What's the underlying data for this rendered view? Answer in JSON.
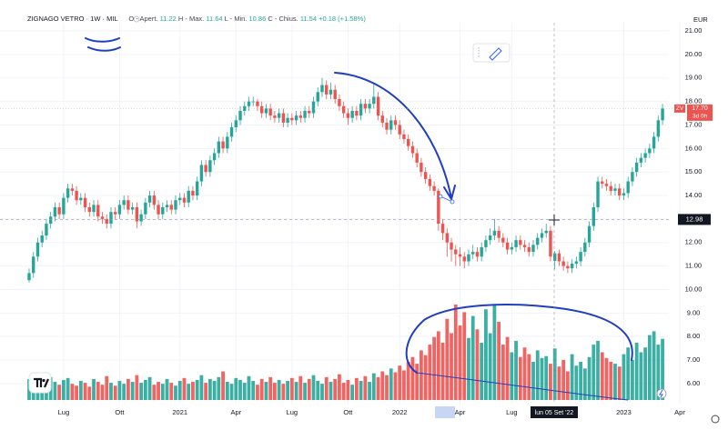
{
  "chart_data": {
    "type": "candlestick",
    "header": {
      "symbol": "ZIGNAGO VETRO · 1W · MIL",
      "o_label": "O - Apert.",
      "h_label": "H - Max.",
      "l_label": "L - Min.",
      "c_label": "C - Chius.",
      "change": "+0.18 (+1.58%)"
    },
    "currency": "EUR",
    "symbol_badge": "ZV",
    "last_price": {
      "value": 17.7,
      "label": "17.70"
    },
    "countdown": "3d 0h",
    "crosshair": {
      "price": 12.98,
      "date": "lun 05 Set '22"
    },
    "up_color": "#26a69a",
    "down_color": "#ef5350",
    "grid": true,
    "ylim": [
      5.3,
      21.35
    ],
    "yticks": [
      {
        "value": 6,
        "label": "6.00"
      },
      {
        "value": 7,
        "label": "7.00"
      },
      {
        "value": 8,
        "label": "8.00"
      },
      {
        "value": 9,
        "label": "9.00"
      },
      {
        "value": 10,
        "label": "10.00"
      },
      {
        "value": 11,
        "label": "11.00"
      },
      {
        "value": 12,
        "label": "12.00"
      },
      {
        "value": 13,
        "label": "13.00"
      },
      {
        "value": 14,
        "label": "14.00"
      },
      {
        "value": 15,
        "label": "15.00"
      },
      {
        "value": 16,
        "label": "16.00"
      },
      {
        "value": 17,
        "label": "17.00"
      },
      {
        "value": 18,
        "label": "18.00"
      },
      {
        "value": 19,
        "label": "19.00"
      },
      {
        "value": 20,
        "label": "20.00"
      },
      {
        "value": 21,
        "label": "21.00"
      }
    ],
    "vlim": [
      0,
      100
    ],
    "categories": [
      null,
      null,
      null,
      null,
      null,
      null,
      null,
      null,
      "Lug",
      null,
      null,
      null,
      null,
      null,
      null,
      null,
      null,
      null,
      null,
      null,
      null,
      "Ott",
      null,
      null,
      null,
      null,
      null,
      null,
      null,
      null,
      null,
      null,
      null,
      null,
      null,
      "2021",
      null,
      null,
      null,
      null,
      null,
      null,
      null,
      null,
      null,
      null,
      null,
      null,
      "Apr",
      null,
      null,
      null,
      null,
      null,
      null,
      null,
      null,
      null,
      null,
      null,
      null,
      "Lug",
      null,
      null,
      null,
      null,
      null,
      null,
      null,
      null,
      null,
      null,
      null,
      null,
      "Ott",
      null,
      null,
      null,
      null,
      null,
      null,
      null,
      null,
      null,
      null,
      null,
      "2022",
      null,
      null,
      null,
      null,
      null,
      null,
      null,
      null,
      null,
      null,
      null,
      null,
      null,
      "Apr",
      null,
      null,
      null,
      null,
      null,
      null,
      null,
      null,
      null,
      null,
      null,
      "Lug",
      null,
      null,
      null,
      null,
      null,
      null,
      null,
      null,
      null,
      null,
      null,
      null,
      null,
      null,
      null,
      null,
      null,
      null,
      null,
      null,
      null,
      null,
      null,
      null,
      null,
      "2023",
      null,
      null,
      null,
      null,
      null,
      null,
      null,
      null,
      null,
      null,
      null,
      null,
      "Apr"
    ],
    "open": [
      10.4,
      10.7,
      11.4,
      12.0,
      12.3,
      12.8,
      13.1,
      13.5,
      13.2,
      13.9,
      14.3,
      14.2,
      13.8,
      13.9,
      13.5,
      13.3,
      13.6,
      13.1,
      13.0,
      12.8,
      13.3,
      13.2,
      13.6,
      13.8,
      13.4,
      13.5,
      12.9,
      13.2,
      13.7,
      14.0,
      13.6,
      13.2,
      13.5,
      13.6,
      13.4,
      13.8,
      13.9,
      13.7,
      14.2,
      14.0,
      14.6,
      15.3,
      15.0,
      15.5,
      15.8,
      16.3,
      16.0,
      16.5,
      16.9,
      17.2,
      17.6,
      17.8,
      18.0,
      18.0,
      17.8,
      17.5,
      17.7,
      17.4,
      17.3,
      17.5,
      17.1,
      17.3,
      17.2,
      17.4,
      17.3,
      17.6,
      17.5,
      18.0,
      18.4,
      18.7,
      18.3,
      18.5,
      18.1,
      17.8,
      17.5,
      17.3,
      17.6,
      17.4,
      17.9,
      17.7,
      17.9,
      18.2,
      17.4,
      17.1,
      16.8,
      17.2,
      17.0,
      16.6,
      16.4,
      16.1,
      15.8,
      15.4,
      15.0,
      14.7,
      14.4,
      14.2,
      12.8,
      12.4,
      12.0,
      11.7,
      11.5,
      11.4,
      11.2,
      11.5,
      11.6,
      11.4,
      11.8,
      12.1,
      12.3,
      12.5,
      12.2,
      12.0,
      11.7,
      11.8,
      12.1,
      11.9,
      11.8,
      11.6,
      11.9,
      12.2,
      12.4,
      12.5,
      11.22,
      11.54,
      11.2,
      11.0,
      10.9,
      11.1,
      11.2,
      11.6,
      12.0,
      12.7,
      13.5,
      14.6,
      14.5,
      14.4,
      14.2,
      14.3,
      14.0,
      14.1,
      14.6,
      15.0,
      15.4,
      15.6,
      15.8,
      16.0,
      16.5,
      17.2,
      null,
      null,
      null,
      null
    ],
    "high": [
      10.9,
      11.6,
      12.2,
      12.5,
      13.0,
      13.3,
      13.7,
      13.7,
      14.1,
      14.5,
      14.5,
      14.4,
      14.1,
      14.1,
      13.7,
      13.8,
      13.8,
      13.3,
      13.2,
      13.5,
      13.5,
      13.8,
      14.0,
      14.0,
      13.7,
      13.7,
      13.4,
      13.9,
      14.2,
      14.2,
      13.8,
      13.7,
      13.8,
      13.8,
      14.0,
      14.1,
      14.1,
      14.4,
      14.4,
      14.8,
      15.5,
      15.5,
      15.7,
      16.0,
      16.5,
      16.5,
      16.7,
      17.1,
      17.4,
      17.8,
      18.0,
      18.2,
      18.2,
      18.1,
      18.0,
      17.9,
      17.9,
      17.6,
      17.7,
      17.7,
      17.5,
      17.5,
      17.6,
      17.6,
      17.8,
      17.8,
      18.2,
      18.6,
      19.0,
      18.9,
      18.8,
      18.7,
      18.3,
      18.0,
      17.7,
      17.8,
      17.8,
      18.1,
      18.1,
      18.1,
      18.8,
      18.4,
      17.6,
      17.3,
      17.4,
      17.4,
      17.2,
      16.8,
      16.6,
      16.3,
      16.0,
      15.6,
      15.2,
      14.9,
      14.6,
      14.3,
      13.0,
      12.6,
      12.2,
      11.9,
      11.8,
      11.6,
      11.7,
      11.9,
      11.8,
      12.0,
      12.3,
      12.6,
      13.0,
      12.7,
      12.4,
      12.2,
      12.0,
      12.3,
      12.3,
      12.1,
      12.0,
      12.1,
      12.4,
      12.6,
      12.8,
      12.7,
      11.64,
      11.7,
      11.4,
      11.2,
      11.3,
      11.4,
      11.8,
      12.2,
      12.9,
      13.7,
      14.8,
      14.8,
      14.7,
      14.6,
      14.5,
      14.5,
      14.3,
      14.8,
      15.2,
      15.6,
      15.8,
      16.0,
      16.2,
      16.7,
      17.4,
      17.9,
      null,
      null,
      null,
      null
    ],
    "low": [
      10.3,
      10.5,
      11.2,
      11.8,
      12.1,
      12.6,
      12.9,
      13.0,
      13.0,
      13.7,
      14.0,
      13.6,
      13.6,
      13.3,
      13.1,
      13.1,
      12.9,
      12.8,
      12.6,
      12.6,
      13.0,
      13.0,
      13.4,
      13.2,
      13.2,
      12.6,
      12.7,
      13.0,
      13.5,
      13.4,
      13.0,
      13.0,
      13.3,
      13.2,
      13.2,
      13.6,
      13.5,
      13.5,
      13.8,
      13.8,
      14.4,
      14.8,
      14.8,
      15.3,
      15.6,
      15.8,
      15.8,
      16.3,
      16.7,
      17.0,
      17.4,
      17.6,
      17.8,
      17.6,
      17.3,
      17.3,
      17.2,
      17.1,
      17.1,
      16.9,
      16.9,
      17.0,
      17.0,
      17.1,
      17.1,
      17.3,
      17.3,
      17.8,
      18.2,
      18.1,
      18.1,
      17.9,
      17.6,
      17.3,
      17.0,
      17.1,
      17.2,
      17.2,
      17.5,
      17.5,
      17.7,
      17.2,
      16.9,
      16.6,
      16.6,
      16.8,
      16.4,
      16.2,
      15.9,
      15.6,
      15.2,
      14.8,
      14.5,
      14.2,
      14.0,
      12.5,
      12.1,
      11.4,
      11.2,
      11.0,
      11.0,
      10.9,
      11.0,
      11.3,
      11.2,
      11.2,
      11.6,
      11.9,
      12.1,
      12.0,
      11.8,
      11.5,
      11.5,
      11.6,
      11.7,
      11.6,
      11.4,
      11.4,
      11.7,
      12.0,
      12.2,
      11.2,
      10.86,
      11.0,
      10.8,
      10.7,
      10.7,
      10.9,
      11.0,
      11.4,
      11.8,
      12.5,
      13.3,
      14.3,
      14.2,
      14.0,
      14.0,
      13.8,
      13.8,
      13.9,
      14.4,
      14.8,
      15.2,
      15.4,
      15.6,
      15.8,
      16.3,
      17.0,
      null,
      null,
      null,
      null
    ],
    "close": [
      10.7,
      11.4,
      12.0,
      12.3,
      12.8,
      13.1,
      13.5,
      13.2,
      13.9,
      14.3,
      14.2,
      13.8,
      13.9,
      13.5,
      13.3,
      13.6,
      13.1,
      13.0,
      12.8,
      13.3,
      13.2,
      13.6,
      13.8,
      13.4,
      13.5,
      12.9,
      13.2,
      13.7,
      14.0,
      13.6,
      13.2,
      13.5,
      13.6,
      13.4,
      13.8,
      13.9,
      13.7,
      14.2,
      14.0,
      14.6,
      15.3,
      15.0,
      15.5,
      15.8,
      16.3,
      16.0,
      16.5,
      16.9,
      17.2,
      17.6,
      17.8,
      18.0,
      18.0,
      17.8,
      17.5,
      17.7,
      17.4,
      17.3,
      17.5,
      17.1,
      17.3,
      17.2,
      17.4,
      17.3,
      17.6,
      17.5,
      18.0,
      18.4,
      18.7,
      18.3,
      18.5,
      18.1,
      17.8,
      17.5,
      17.3,
      17.6,
      17.4,
      17.9,
      17.7,
      17.9,
      18.2,
      17.4,
      17.1,
      16.8,
      17.2,
      17.0,
      16.6,
      16.4,
      16.1,
      15.8,
      15.4,
      15.0,
      14.7,
      14.4,
      14.2,
      12.8,
      12.4,
      12.0,
      11.7,
      11.5,
      11.4,
      11.2,
      11.5,
      11.6,
      11.4,
      11.8,
      12.1,
      12.3,
      12.5,
      12.2,
      12.0,
      11.7,
      11.8,
      12.1,
      11.9,
      11.8,
      11.6,
      11.9,
      12.2,
      12.4,
      12.5,
      11.4,
      11.54,
      11.2,
      11.0,
      10.9,
      11.1,
      11.2,
      11.6,
      12.0,
      12.7,
      13.5,
      14.6,
      14.5,
      14.4,
      14.2,
      14.3,
      14.0,
      14.1,
      14.6,
      15.0,
      15.4,
      15.6,
      15.8,
      16.0,
      16.5,
      17.2,
      17.7,
      null,
      null,
      null,
      null
    ],
    "volume": [
      22,
      28,
      25,
      20,
      18,
      24,
      19,
      16,
      21,
      23,
      17,
      15,
      20,
      18,
      14,
      22,
      19,
      16,
      25,
      18,
      15,
      20,
      17,
      22,
      19,
      26,
      18,
      21,
      24,
      16,
      19,
      17,
      22,
      18,
      15,
      20,
      23,
      17,
      19,
      21,
      26,
      18,
      22,
      20,
      24,
      30,
      19,
      17,
      23,
      21,
      18,
      25,
      20,
      16,
      22,
      19,
      24,
      18,
      21,
      17,
      20,
      23,
      19,
      25,
      18,
      22,
      26,
      20,
      17,
      24,
      19,
      22,
      27,
      18,
      21,
      16,
      23,
      20,
      25,
      19,
      28,
      24,
      30,
      26,
      33,
      29,
      36,
      31,
      40,
      45,
      38,
      52,
      47,
      58,
      66,
      72,
      60,
      85,
      70,
      100,
      78,
      92,
      65,
      88,
      74,
      60,
      95,
      70,
      100,
      82,
      58,
      66,
      50,
      62,
      45,
      55,
      48,
      40,
      52,
      44,
      46,
      38,
      54,
      35,
      42,
      30,
      48,
      36,
      40,
      33,
      45,
      58,
      62,
      50,
      44,
      40,
      38,
      35,
      48,
      55,
      42,
      60,
      50,
      55,
      68,
      72,
      58,
      64,
      null,
      null,
      null,
      null
    ]
  }
}
